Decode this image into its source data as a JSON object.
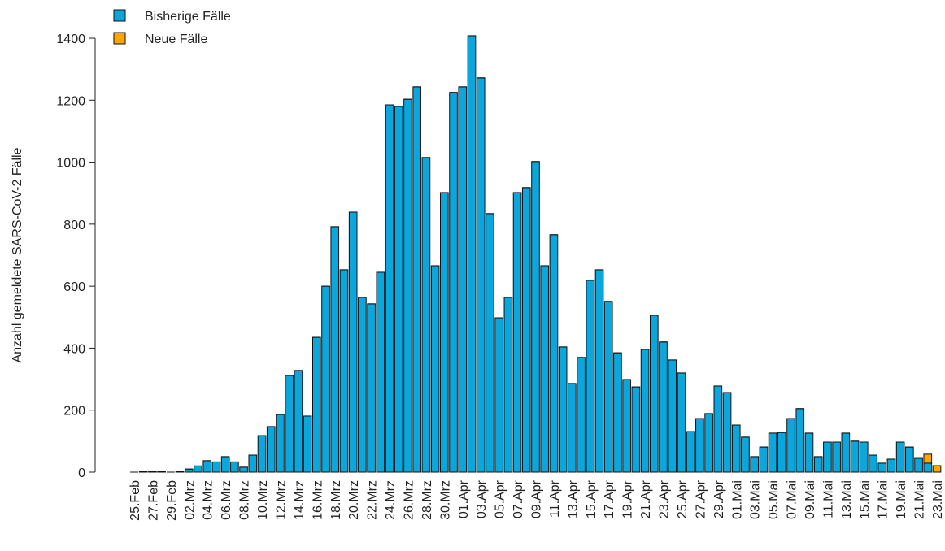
{
  "chart_data": {
    "type": "stacked-bar",
    "y_label": "Anzahl gemeldete SARS-CoV-2 Fälle",
    "categories": [
      "25.Feb",
      null,
      "27.Feb",
      null,
      "29.Feb",
      null,
      "02.Mrz",
      null,
      "04.Mrz",
      null,
      "06.Mrz",
      null,
      "08.Mrz",
      null,
      "10.Mrz",
      null,
      "12.Mrz",
      null,
      "14.Mrz",
      null,
      "16.Mrz",
      null,
      "18.Mrz",
      null,
      "20.Mrz",
      null,
      "22.Mrz",
      null,
      "24.Mrz",
      null,
      "26.Mrz",
      null,
      "28.Mrz",
      null,
      "30.Mrz",
      null,
      "01.Apr",
      null,
      "03.Apr",
      null,
      "05.Apr",
      null,
      "07.Apr",
      null,
      "09.Apr",
      null,
      "11.Apr",
      null,
      "13.Apr",
      null,
      "15.Apr",
      null,
      "17.Apr",
      null,
      "19.Apr",
      null,
      "21.Apr",
      null,
      "23.Apr",
      null,
      "25.Apr",
      null,
      "27.Apr",
      null,
      "29.Apr",
      null,
      "01.Mai",
      null,
      "03.Mai",
      null,
      "05.Mai",
      null,
      "07.Mai",
      null,
      "09.Mai",
      null,
      "11.Mai",
      null,
      "13.Mai",
      null,
      "15.Mai",
      null,
      "17.Mai",
      null,
      "19.Mai",
      null,
      "21.Mai",
      null,
      "23.Mai"
    ],
    "series": [
      {
        "name": "Bisherige Fälle",
        "color": "#0aa6dc",
        "values": [
          0,
          2,
          2,
          2,
          0,
          2,
          10,
          20,
          37,
          33,
          50,
          33,
          16,
          55,
          118,
          147,
          186,
          312,
          328,
          181,
          435,
          600,
          792,
          653,
          839,
          564,
          543,
          645,
          1185,
          1180,
          1203,
          1243,
          1015,
          666,
          902,
          1225,
          1243,
          1408,
          1272,
          834,
          498,
          564,
          902,
          918,
          1002,
          666,
          766,
          404,
          286,
          370,
          619,
          653,
          551,
          385,
          299,
          275,
          396,
          506,
          420,
          362,
          320,
          131,
          173,
          189,
          278,
          257,
          152,
          113,
          50,
          81,
          126,
          128,
          173,
          205,
          126,
          50,
          97,
          97,
          126,
          100,
          97,
          55,
          29,
          42,
          97,
          81,
          45,
          29,
          0
        ]
      },
      {
        "name": "Neue Fälle",
        "color": "#ffa500",
        "values": [
          0,
          0,
          0,
          0,
          0,
          0,
          0,
          0,
          0,
          0,
          0,
          0,
          0,
          0,
          0,
          0,
          0,
          0,
          0,
          0,
          0,
          0,
          0,
          0,
          0,
          0,
          0,
          0,
          0,
          0,
          0,
          0,
          0,
          0,
          0,
          0,
          0,
          0,
          0,
          0,
          0,
          0,
          0,
          0,
          0,
          0,
          0,
          0,
          0,
          0,
          0,
          0,
          0,
          0,
          0,
          0,
          0,
          0,
          0,
          0,
          0,
          0,
          0,
          0,
          0,
          0,
          0,
          0,
          0,
          0,
          0,
          0,
          0,
          0,
          0,
          0,
          0,
          0,
          0,
          0,
          0,
          0,
          0,
          0,
          0,
          0,
          2,
          29,
          21
        ]
      }
    ],
    "ylim": [
      0,
      1400
    ],
    "yticks": [
      0,
      200,
      400,
      600,
      800,
      1000,
      1200,
      1400
    ],
    "legend": "top-left"
  }
}
